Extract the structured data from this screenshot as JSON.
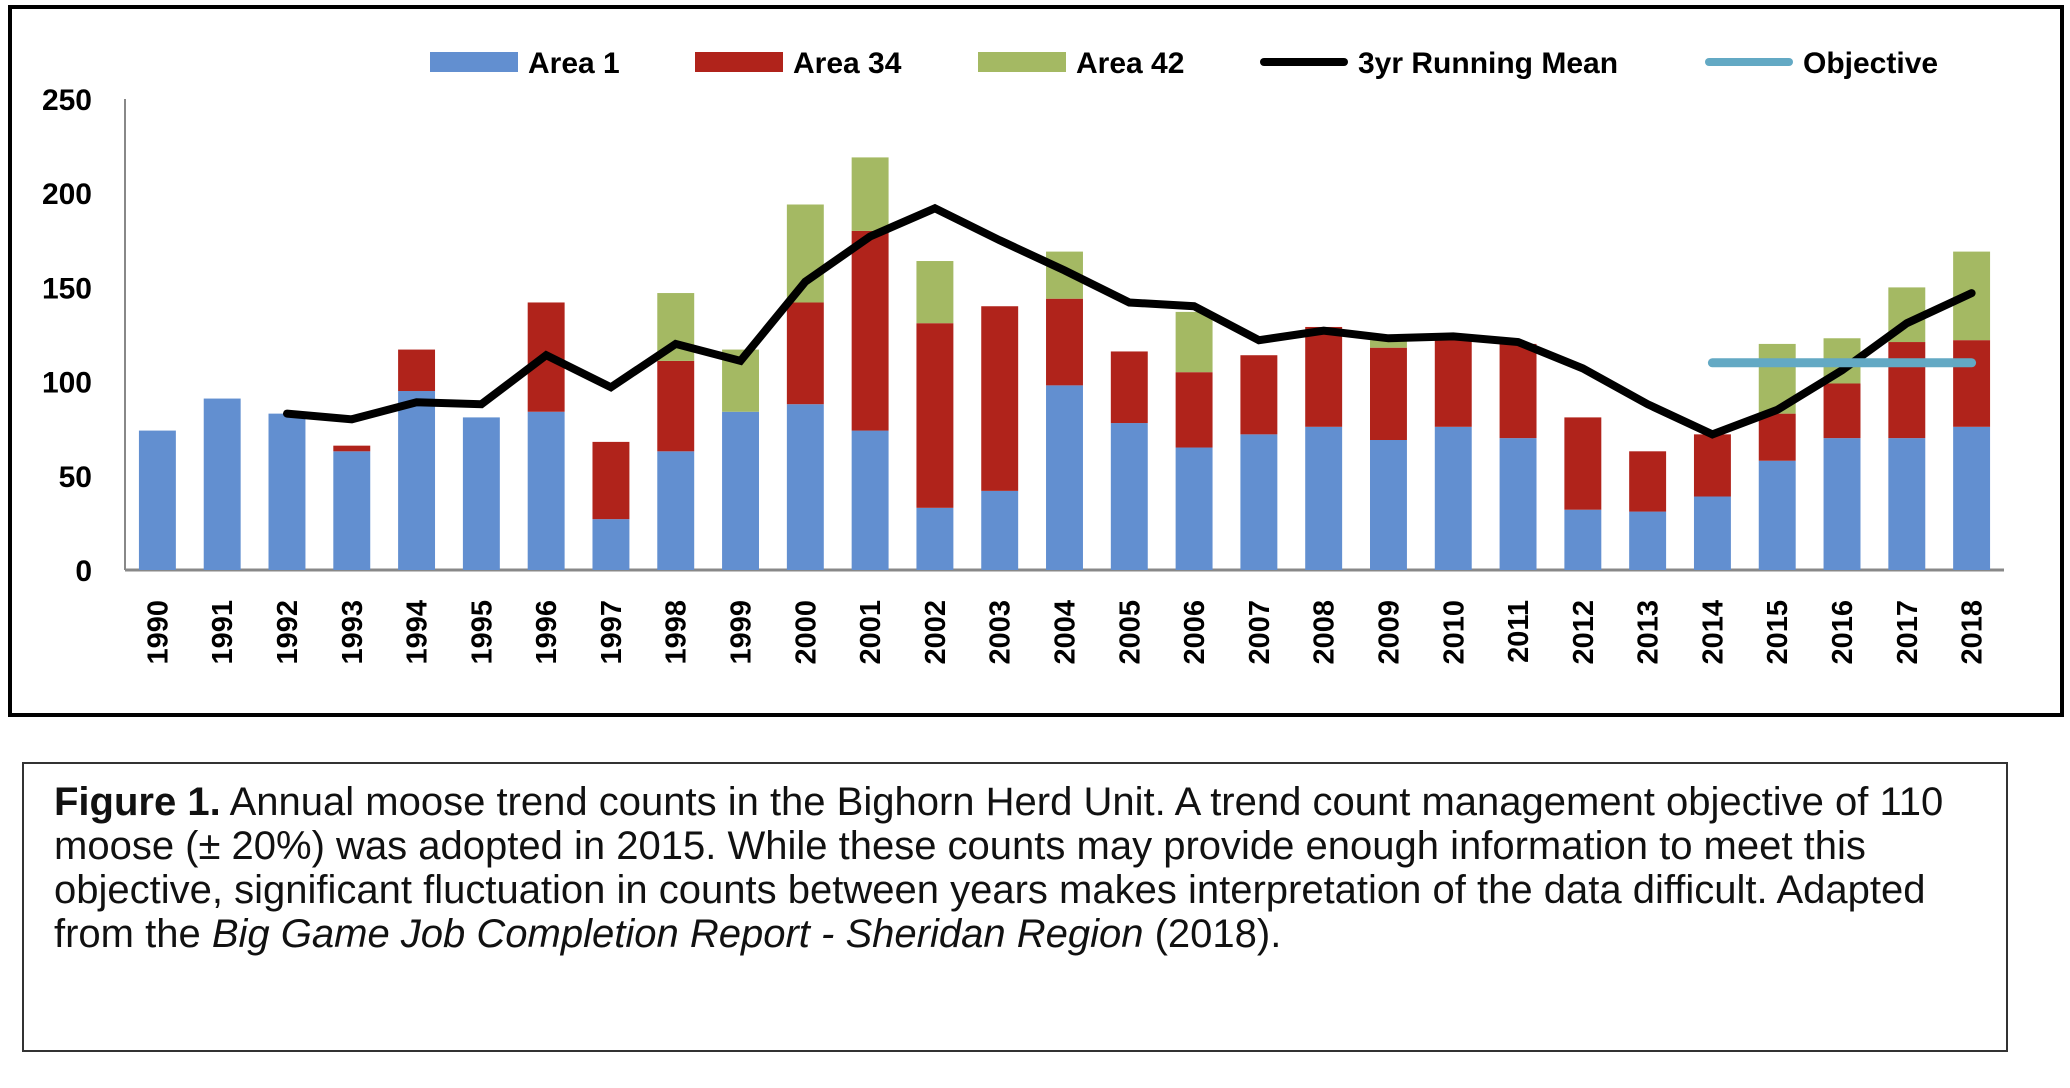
{
  "chart_data": {
    "type": "bar",
    "stacked": true,
    "title": "",
    "xlabel": "",
    "ylabel": "",
    "ylim": [
      0,
      250
    ],
    "yticks": [
      0,
      50,
      100,
      150,
      200,
      250
    ],
    "grid": false,
    "legend_position": "top",
    "categories": [
      "1990",
      "1991",
      "1992",
      "1993",
      "1994",
      "1995",
      "1996",
      "1997",
      "1998",
      "1999",
      "2000",
      "2001",
      "2002",
      "2003",
      "2004",
      "2005",
      "2006",
      "2007",
      "2008",
      "2009",
      "2010",
      "2011",
      "2012",
      "2013",
      "2014",
      "2015",
      "2016",
      "2017",
      "2018"
    ],
    "series": [
      {
        "name": "Area 1",
        "type": "bar",
        "color": "#628fd0",
        "values": [
          74,
          91,
          83,
          63,
          95,
          81,
          84,
          27,
          63,
          84,
          88,
          74,
          33,
          42,
          98,
          78,
          65,
          72,
          76,
          69,
          76,
          70,
          32,
          31,
          39,
          58,
          70,
          70,
          76
        ]
      },
      {
        "name": "Area 34",
        "type": "bar",
        "color": "#b0231b",
        "values": [
          0,
          0,
          0,
          3,
          22,
          0,
          58,
          41,
          48,
          0,
          54,
          106,
          98,
          98,
          46,
          38,
          40,
          42,
          53,
          49,
          46,
          50,
          49,
          32,
          33,
          25,
          29,
          51,
          46
        ]
      },
      {
        "name": "Area 42",
        "type": "bar",
        "color": "#a4b963",
        "values": [
          0,
          0,
          0,
          0,
          0,
          0,
          0,
          0,
          36,
          33,
          52,
          39,
          33,
          0,
          25,
          0,
          32,
          0,
          0,
          4,
          0,
          0,
          0,
          0,
          0,
          37,
          24,
          29,
          47
        ]
      },
      {
        "name": "3yr Running Mean",
        "type": "line",
        "color": "#000000",
        "values": [
          null,
          null,
          83,
          80,
          89,
          88,
          114,
          97,
          120,
          111,
          153,
          177,
          192,
          175,
          159,
          142,
          140,
          122,
          127,
          123,
          124,
          121,
          107,
          88,
          72,
          85,
          106,
          131,
          147
        ]
      },
      {
        "name": "Objective",
        "type": "line",
        "color": "#63a9c4",
        "values": [
          null,
          null,
          null,
          null,
          null,
          null,
          null,
          null,
          null,
          null,
          null,
          null,
          null,
          null,
          null,
          null,
          null,
          null,
          null,
          null,
          null,
          null,
          null,
          null,
          110,
          110,
          110,
          110,
          110
        ]
      }
    ]
  },
  "caption": {
    "label": "Figure 1.",
    "text1": " Annual moose trend counts in the Bighorn Herd Unit. A trend count management objective of 110 moose (± 20%) was adopted in 2015. While these counts may provide enough information to meet this objective, significant fluctuation in counts between years makes interpretation of the data difficult. Adapted from the ",
    "italic": "Big Game Job Completion Report - Sheridan Region",
    "text2": " (2018)."
  }
}
